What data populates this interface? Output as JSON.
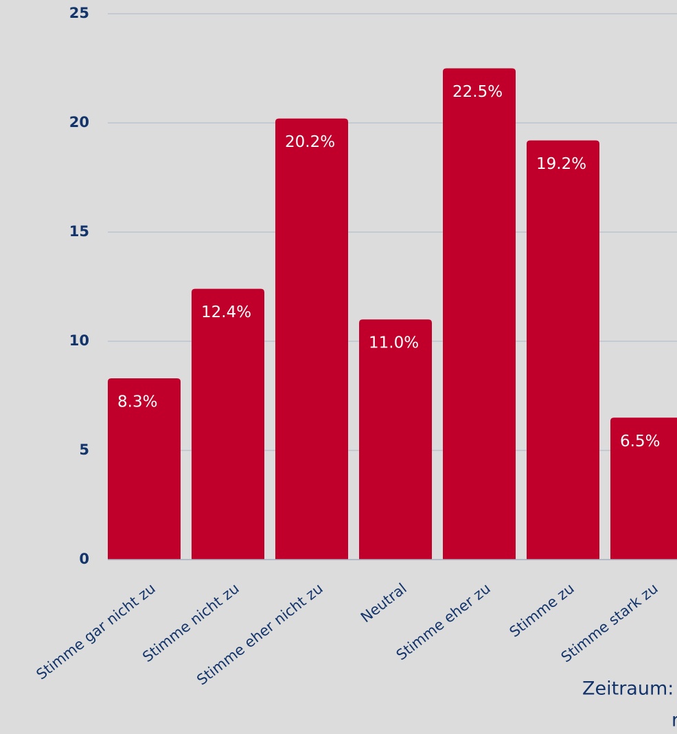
{
  "chart_data": {
    "type": "bar",
    "categories": [
      "Stimme gar nicht zu",
      "Stimme nicht zu",
      "Stimme eher nicht zu",
      "Neutral",
      "Stimme eher zu",
      "Stimme zu",
      "Stimme stark zu"
    ],
    "values": [
      8.3,
      12.4,
      20.2,
      11.0,
      22.5,
      19.2,
      6.5
    ],
    "value_labels": [
      "8.3%",
      "12.4%",
      "20.2%",
      "11.0%",
      "22.5%",
      "19.2%",
      "6.5%"
    ],
    "color": "#c0002a",
    "ylim": [
      0,
      25
    ],
    "yticks": [
      0,
      5,
      10,
      15,
      20,
      25
    ],
    "grid": true,
    "annotations": [
      "Zeitraum:",
      "r"
    ]
  }
}
